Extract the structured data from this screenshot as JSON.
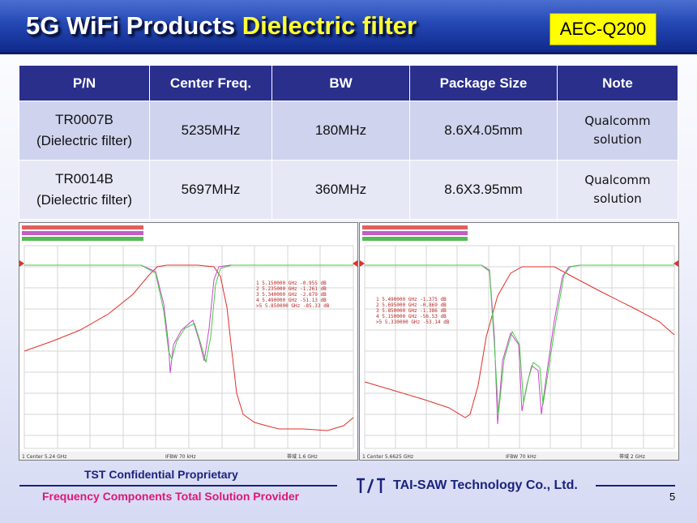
{
  "header": {
    "title_main": "5G WiFi Products ",
    "title_highlight": "Dielectric filter",
    "badge": "AEC-Q200"
  },
  "table": {
    "headers": [
      "P/N",
      "Center Freq.",
      "BW",
      "Package Size",
      "Note"
    ],
    "rows": [
      {
        "pn": "TR0007B",
        "pn_sub": "(Dielectric filter)",
        "center_freq": "5235MHz",
        "bw": "180MHz",
        "package": "8.6X4.05mm",
        "note_1": "Qualcomm",
        "note_2": "solution"
      },
      {
        "pn": "TR0014B",
        "pn_sub": "(Dielectric filter)",
        "center_freq": "5697MHz",
        "bw": "360MHz",
        "package": "8.6X3.95mm",
        "note_1": "Qualcomm",
        "note_2": "solution"
      }
    ]
  },
  "plots": {
    "left": {
      "markers": [
        "1  5.150000 GHz  -0.955 dB",
        "2  5.235000 GHz  -1.261 dB",
        "3  5.340000 GHz  -2.679 dB",
        "4  5.490000 GHz  -51.13 dB",
        ">5  5.850000 GHz  -85.33 dB"
      ],
      "footer_left": "1  Center 5.24 GHz",
      "footer_mid": "IFBW 70 kHz",
      "footer_right": "帯域 1.6 GHz"
    },
    "right": {
      "markers": [
        "1  5.490000 GHz  -1.375 dB",
        "2  5.695000 GHz  -0.869 dB",
        "3  5.850000 GHz  -1.386 dB",
        "4  5.150000 GHz  -56.53 dB",
        ">5  5.330000 GHz  -53.14 dB"
      ],
      "footer_left": "1  Center 5.6625 GHz",
      "footer_mid": "IFBW 70 kHz",
      "footer_right": "帯域 2 GHz"
    }
  },
  "footer": {
    "confidential": "TST Confidential Proprietary",
    "slogan": "Frequency Components Total Solution Provider",
    "company": "TAI-SAW Technology Co., Ltd.",
    "logo_text": "T S T",
    "page": "5"
  },
  "colors": {
    "header_blue": "#2448b4",
    "table_header": "#2a2f8c",
    "title_highlight": "#ffff33",
    "badge_bg": "#ffff00",
    "slogan": "#e0157a",
    "trace_red": "#e0302a",
    "trace_magenta": "#cc44cc",
    "trace_green": "#44cc44"
  }
}
